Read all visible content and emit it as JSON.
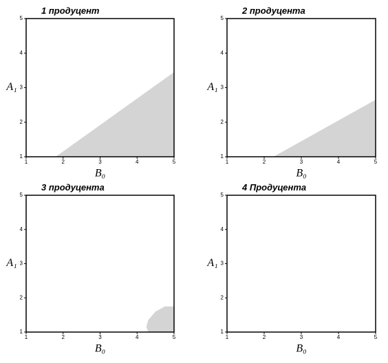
{
  "chart_data": [
    {
      "type": "region",
      "title": "1 продуцент",
      "xlabel": "B₀",
      "ylabel": "A₁",
      "xlim": [
        1,
        5
      ],
      "ylim": [
        1,
        5
      ],
      "xticks": [
        1,
        2,
        3,
        4,
        5
      ],
      "yticks": [
        1,
        2,
        3,
        4,
        5
      ],
      "color": "#d4d4d4",
      "region": {
        "x": [
          1.8,
          5,
          5
        ],
        "y": [
          1,
          3.45,
          1
        ]
      }
    },
    {
      "type": "region",
      "title": "2 продуцента",
      "xlabel": "B₀",
      "ylabel": "A₁",
      "xlim": [
        1,
        5
      ],
      "ylim": [
        1,
        5
      ],
      "xticks": [
        1,
        2,
        3,
        4,
        5
      ],
      "yticks": [
        1,
        2,
        3,
        4,
        5
      ],
      "color": "#d4d4d4",
      "region": {
        "x": [
          2.25,
          5,
          5
        ],
        "y": [
          1,
          2.65,
          1
        ]
      }
    },
    {
      "type": "region",
      "title": "3 продуцента",
      "xlabel": "B₀",
      "ylabel": "A₁",
      "xlim": [
        1,
        5
      ],
      "ylim": [
        1,
        5
      ],
      "xticks": [
        1,
        2,
        3,
        4,
        5
      ],
      "yticks": [
        1,
        2,
        3,
        4,
        5
      ],
      "color": "#d4d4d4",
      "region": {
        "x": [
          4.3,
          5,
          5,
          4.75,
          4.5,
          4.3,
          4.25
        ],
        "y": [
          1,
          1,
          1.75,
          1.75,
          1.6,
          1.35,
          1.15
        ]
      }
    },
    {
      "type": "region",
      "title": "4 Продуцента",
      "xlabel": "B₀",
      "ylabel": "A₁",
      "xlim": [
        1,
        5
      ],
      "ylim": [
        1,
        5
      ],
      "xticks": [
        1,
        2,
        3,
        4,
        5
      ],
      "yticks": [
        1,
        2,
        3,
        4,
        5
      ],
      "color": "#d4d4d4"
    }
  ]
}
